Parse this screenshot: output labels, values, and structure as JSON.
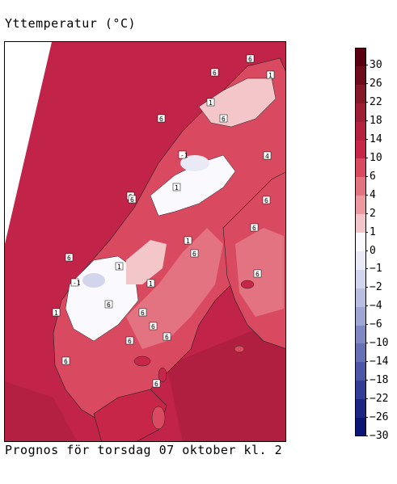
{
  "title": "Yttemperatur (°C)",
  "caption": "Prognos för torsdag 07 oktober kl. 2",
  "legend": {
    "labels": [
      "30",
      "26",
      "22",
      "18",
      "14",
      "10",
      "6",
      "4",
      "2",
      "1",
      "0",
      "−1",
      "−2",
      "−4",
      "−6",
      "−10",
      "−14",
      "−18",
      "−22",
      "−26",
      "−30"
    ],
    "colors": [
      "#5a0010",
      "#6e0c1c",
      "#861828",
      "#9e1e35",
      "#b5213f",
      "#c82648",
      "#d94a60",
      "#e37380",
      "#ec99a0",
      "#f3c6c9",
      "#fafafe",
      "#eaeaf6",
      "#d3d5ec",
      "#b8bee0",
      "#9ea6d3",
      "#8088c3",
      "#6670b6",
      "#4c55a6",
      "#343d96",
      "#1c2584",
      "#0b1575"
    ]
  },
  "map": {
    "sea_color": "#c22449",
    "contour_labels": [
      "6",
      "6",
      "6",
      "4",
      "6",
      "6",
      "1",
      "-1",
      "6",
      "6",
      "1",
      "6",
      "-1",
      "6",
      "1",
      "1",
      "1",
      "6",
      "6",
      "6",
      "6",
      "6",
      "1",
      "6",
      "1",
      "6",
      "6",
      "6"
    ]
  }
}
